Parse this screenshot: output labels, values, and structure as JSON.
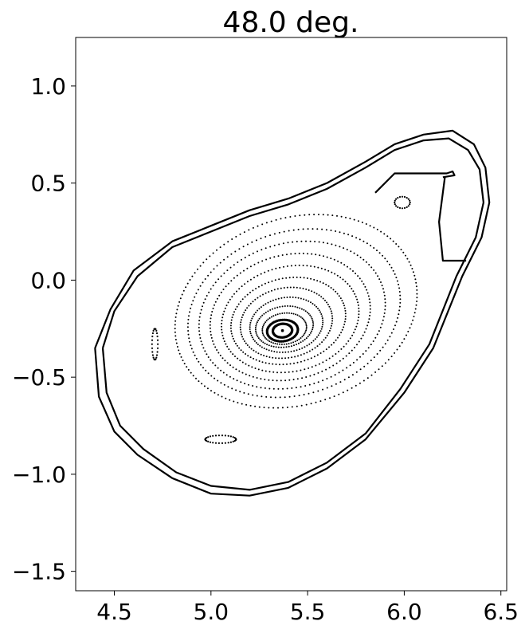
{
  "chart_data": {
    "type": "scatter",
    "title": "48.0 deg.",
    "xlabel": "",
    "ylabel": "",
    "xlim": [
      4.3,
      6.53
    ],
    "ylim": [
      -1.6,
      1.25
    ],
    "grid": false,
    "xticks": [
      4.5,
      5.0,
      5.5,
      6.0,
      6.5
    ],
    "yticks": [
      1.0,
      0.5,
      0.0,
      -0.5,
      -1.0,
      -1.5
    ],
    "xtick_labels": [
      "4.5",
      "5.0",
      "5.5",
      "6.0",
      "6.5"
    ],
    "ytick_labels": [
      "1.0",
      "0.5",
      "0.0",
      "−0.5",
      "−1.0",
      "−1.5"
    ],
    "magnetic_axis": [
      5.37,
      -0.26
    ],
    "outer_wall": [
      [
        4.4,
        -0.35
      ],
      [
        4.42,
        -0.6
      ],
      [
        4.5,
        -0.78
      ],
      [
        4.62,
        -0.9
      ],
      [
        4.8,
        -1.02
      ],
      [
        5.0,
        -1.1
      ],
      [
        5.2,
        -1.11
      ],
      [
        5.4,
        -1.07
      ],
      [
        5.6,
        -0.97
      ],
      [
        5.8,
        -0.82
      ],
      [
        6.0,
        -0.58
      ],
      [
        6.15,
        -0.35
      ],
      [
        6.3,
        0.02
      ],
      [
        6.4,
        0.22
      ],
      [
        6.44,
        0.4
      ],
      [
        6.42,
        0.58
      ],
      [
        6.36,
        0.7
      ],
      [
        6.25,
        0.77
      ],
      [
        6.1,
        0.75
      ],
      [
        5.95,
        0.7
      ],
      [
        5.8,
        0.61
      ],
      [
        5.6,
        0.5
      ],
      [
        5.4,
        0.42
      ],
      [
        5.2,
        0.36
      ],
      [
        5.0,
        0.28
      ],
      [
        4.8,
        0.2
      ],
      [
        4.6,
        0.05
      ],
      [
        4.48,
        -0.15
      ],
      [
        4.4,
        -0.35
      ]
    ],
    "inner_wall": [
      [
        4.44,
        -0.35
      ],
      [
        4.46,
        -0.58
      ],
      [
        4.53,
        -0.75
      ],
      [
        4.65,
        -0.87
      ],
      [
        4.82,
        -0.99
      ],
      [
        5.0,
        -1.06
      ],
      [
        5.2,
        -1.08
      ],
      [
        5.4,
        -1.04
      ],
      [
        5.6,
        -0.94
      ],
      [
        5.8,
        -0.79
      ],
      [
        5.98,
        -0.56
      ],
      [
        6.13,
        -0.33
      ],
      [
        6.27,
        0.02
      ],
      [
        6.37,
        0.22
      ],
      [
        6.41,
        0.4
      ],
      [
        6.39,
        0.57
      ],
      [
        6.33,
        0.67
      ],
      [
        6.23,
        0.73
      ],
      [
        6.1,
        0.72
      ],
      [
        5.95,
        0.67
      ],
      [
        5.8,
        0.58
      ],
      [
        5.6,
        0.47
      ],
      [
        5.4,
        0.39
      ],
      [
        5.2,
        0.33
      ],
      [
        5.0,
        0.25
      ],
      [
        4.8,
        0.17
      ],
      [
        4.62,
        0.02
      ],
      [
        4.5,
        -0.16
      ],
      [
        4.44,
        -0.35
      ]
    ],
    "surfaces": [
      {
        "cx": 5.37,
        "cy": -0.26,
        "rx": 0.05,
        "ry": 0.035,
        "tilt": 0.1,
        "n": 60
      },
      {
        "cx": 5.37,
        "cy": -0.26,
        "rx": 0.08,
        "ry": 0.055,
        "tilt": 0.12,
        "n": 55
      },
      {
        "cx": 5.38,
        "cy": -0.25,
        "rx": 0.115,
        "ry": 0.08,
        "tilt": 0.14,
        "n": 60
      },
      {
        "cx": 5.38,
        "cy": -0.24,
        "rx": 0.15,
        "ry": 0.105,
        "tilt": 0.16,
        "n": 70
      },
      {
        "cx": 5.39,
        "cy": -0.23,
        "rx": 0.19,
        "ry": 0.14,
        "tilt": 0.18,
        "n": 80
      },
      {
        "cx": 5.39,
        "cy": -0.22,
        "rx": 0.24,
        "ry": 0.18,
        "tilt": 0.2,
        "n": 90
      },
      {
        "cx": 5.4,
        "cy": -0.21,
        "rx": 0.3,
        "ry": 0.22,
        "tilt": 0.22,
        "n": 100
      },
      {
        "cx": 5.41,
        "cy": -0.2,
        "rx": 0.36,
        "ry": 0.27,
        "tilt": 0.24,
        "n": 110
      },
      {
        "cx": 5.41,
        "cy": -0.19,
        "rx": 0.42,
        "ry": 0.32,
        "tilt": 0.26,
        "n": 120
      },
      {
        "cx": 5.42,
        "cy": -0.18,
        "rx": 0.49,
        "ry": 0.37,
        "tilt": 0.28,
        "n": 130
      },
      {
        "cx": 5.43,
        "cy": -0.17,
        "rx": 0.56,
        "ry": 0.42,
        "tilt": 0.3,
        "n": 140
      },
      {
        "cx": 5.44,
        "cy": -0.16,
        "rx": 0.64,
        "ry": 0.48,
        "tilt": 0.32,
        "n": 160
      }
    ],
    "islands": [
      {
        "cx": 5.05,
        "cy": -0.82,
        "rx": 0.08,
        "ry": 0.02,
        "tilt": 0.0,
        "n": 30
      },
      {
        "cx": 4.71,
        "cy": -0.33,
        "rx": 0.015,
        "ry": 0.08,
        "tilt": 0.0,
        "n": 24
      },
      {
        "cx": 5.99,
        "cy": 0.4,
        "rx": 0.04,
        "ry": 0.03,
        "tilt": 0.0,
        "n": 20
      }
    ],
    "top_right_divertor": [
      [
        5.85,
        0.45
      ],
      [
        5.95,
        0.55
      ],
      [
        6.22,
        0.55
      ],
      [
        6.25,
        0.56
      ],
      [
        6.26,
        0.54
      ],
      [
        6.2,
        0.53
      ]
    ],
    "right_divertor": [
      [
        6.21,
        0.53
      ],
      [
        6.18,
        0.3
      ],
      [
        6.2,
        0.1
      ],
      [
        6.32,
        0.1
      ]
    ]
  }
}
